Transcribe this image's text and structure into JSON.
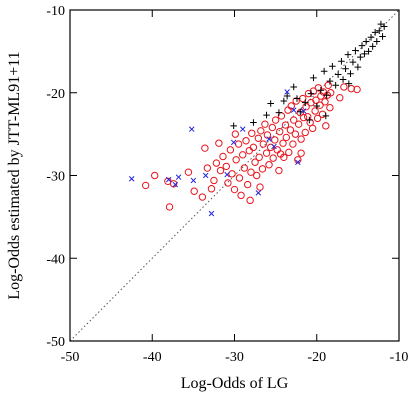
{
  "chart_data": {
    "type": "scatter",
    "xlabel": "Log-Odds of LG",
    "ylabel": "Log-Odds estimated by JTT-ML91+11",
    "xlim": [
      -50,
      -10
    ],
    "ylim": [
      -50,
      -10
    ],
    "xticks": [
      -50,
      -40,
      -30,
      -20,
      -10
    ],
    "yticks": [
      -50,
      -40,
      -30,
      -20,
      -10
    ],
    "xtick_labels": [
      "-50",
      "-40",
      "-30",
      "-20",
      "-10"
    ],
    "ytick_labels": [
      "-50",
      "-40",
      "-30",
      "-20",
      "-10"
    ],
    "grid": false,
    "reference_line": {
      "style": "dotted",
      "from": [
        -50,
        -50
      ],
      "to": [
        -10,
        -10
      ]
    },
    "series": [
      {
        "marker": "circle",
        "color": "#e8141b",
        "points": [
          [
            -40.8,
            -31.2
          ],
          [
            -39.7,
            -30.0
          ],
          [
            -38.1,
            -30.7
          ],
          [
            -37.9,
            -33.8
          ],
          [
            -37.4,
            -31.0
          ],
          [
            -35.6,
            -29.6
          ],
          [
            -34.9,
            -31.9
          ],
          [
            -33.9,
            -32.6
          ],
          [
            -33.3,
            -29.1
          ],
          [
            -32.8,
            -31.6
          ],
          [
            -32.5,
            -30.6
          ],
          [
            -32.2,
            -28.5
          ],
          [
            -31.7,
            -29.4
          ],
          [
            -31.4,
            -27.7
          ],
          [
            -31.0,
            -28.9
          ],
          [
            -30.8,
            -30.9
          ],
          [
            -30.5,
            -26.9
          ],
          [
            -30.3,
            -29.8
          ],
          [
            -30.0,
            -31.7
          ],
          [
            -29.8,
            -28.1
          ],
          [
            -29.5,
            -26.2
          ],
          [
            -29.4,
            -30.3
          ],
          [
            -29.2,
            -32.4
          ],
          [
            -29.0,
            -27.5
          ],
          [
            -28.8,
            -29.1
          ],
          [
            -28.6,
            -25.8
          ],
          [
            -28.4,
            -31.1
          ],
          [
            -28.2,
            -27.0
          ],
          [
            -28.0,
            -29.6
          ],
          [
            -27.9,
            -24.9
          ],
          [
            -27.7,
            -26.6
          ],
          [
            -27.5,
            -28.4
          ],
          [
            -27.3,
            -30.0
          ],
          [
            -27.1,
            -25.5
          ],
          [
            -27.0,
            -27.8
          ],
          [
            -26.8,
            -24.6
          ],
          [
            -26.6,
            -29.2
          ],
          [
            -26.5,
            -26.2
          ],
          [
            -26.3,
            -23.8
          ],
          [
            -26.1,
            -27.3
          ],
          [
            -26.0,
            -25.1
          ],
          [
            -25.8,
            -28.7
          ],
          [
            -25.6,
            -26.6
          ],
          [
            -25.4,
            -24.2
          ],
          [
            -25.3,
            -27.9
          ],
          [
            -25.1,
            -25.7
          ],
          [
            -25.0,
            -23.3
          ],
          [
            -24.8,
            -26.9
          ],
          [
            -24.6,
            -29.4
          ],
          [
            -24.5,
            -24.7
          ],
          [
            -24.3,
            -22.8
          ],
          [
            -24.1,
            -26.1
          ],
          [
            -24.0,
            -27.8
          ],
          [
            -23.8,
            -23.9
          ],
          [
            -23.7,
            -25.4
          ],
          [
            -23.5,
            -22.1
          ],
          [
            -23.4,
            -27.2
          ],
          [
            -23.2,
            -24.5
          ],
          [
            -23.1,
            -21.6
          ],
          [
            -22.9,
            -26.2
          ],
          [
            -22.8,
            -23.3
          ],
          [
            -22.6,
            -25.0
          ],
          [
            -22.5,
            -21.0
          ],
          [
            -22.3,
            -28.1
          ],
          [
            -22.2,
            -23.8
          ],
          [
            -22.0,
            -22.4
          ],
          [
            -21.9,
            -25.6
          ],
          [
            -21.7,
            -20.7
          ],
          [
            -21.6,
            -23.0
          ],
          [
            -21.4,
            -24.8
          ],
          [
            -21.3,
            -21.7
          ],
          [
            -21.1,
            -22.9
          ],
          [
            -21.0,
            -20.1
          ],
          [
            -20.8,
            -23.6
          ],
          [
            -20.7,
            -21.2
          ],
          [
            -20.5,
            -24.3
          ],
          [
            -20.4,
            -19.8
          ],
          [
            -20.2,
            -22.2
          ],
          [
            -20.1,
            -20.9
          ],
          [
            -19.9,
            -23.1
          ],
          [
            -19.8,
            -19.4
          ],
          [
            -19.6,
            -21.5
          ],
          [
            -19.5,
            -20.4
          ],
          [
            -19.3,
            -22.6
          ],
          [
            -19.2,
            -19.9
          ],
          [
            -19.0,
            -21.1
          ],
          [
            -18.9,
            -24.0
          ],
          [
            -18.7,
            -20.3
          ],
          [
            -18.6,
            -19.1
          ],
          [
            -18.4,
            -21.8
          ],
          [
            -18.3,
            -20.0
          ],
          [
            -16.7,
            -19.3
          ],
          [
            -15.8,
            -19.5
          ],
          [
            -15.1,
            -19.6
          ],
          [
            -17.2,
            -20.6
          ],
          [
            -26.9,
            -31.4
          ],
          [
            -24.4,
            -27.4
          ],
          [
            -31.9,
            -26.1
          ],
          [
            -29.9,
            -25.0
          ],
          [
            -33.6,
            -26.7
          ],
          [
            -28.1,
            -33.0
          ],
          [
            -21.9,
            -27.3
          ]
        ]
      },
      {
        "marker": "plus",
        "color": "#000000",
        "points": [
          [
            -30.1,
            -24.0
          ],
          [
            -27.7,
            -23.6
          ],
          [
            -26.1,
            -22.7
          ],
          [
            -25.6,
            -21.3
          ],
          [
            -24.0,
            -21.0
          ],
          [
            -23.6,
            -20.4
          ],
          [
            -22.8,
            -19.3
          ],
          [
            -22.0,
            -22.3
          ],
          [
            -21.4,
            -21.2
          ],
          [
            -20.7,
            -20.1
          ],
          [
            -20.4,
            -18.2
          ],
          [
            -20.0,
            -21.6
          ],
          [
            -19.5,
            -19.7
          ],
          [
            -19.1,
            -17.4
          ],
          [
            -18.8,
            -20.3
          ],
          [
            -18.4,
            -18.6
          ],
          [
            -18.1,
            -16.8
          ],
          [
            -17.7,
            -19.1
          ],
          [
            -17.4,
            -17.8
          ],
          [
            -17.0,
            -16.2
          ],
          [
            -16.8,
            -18.4
          ],
          [
            -16.5,
            -17.1
          ],
          [
            -16.2,
            -15.4
          ],
          [
            -15.9,
            -17.7
          ],
          [
            -15.6,
            -16.3
          ],
          [
            -15.3,
            -14.9
          ],
          [
            -15.0,
            -16.9
          ],
          [
            -14.7,
            -15.7
          ],
          [
            -14.5,
            -14.3
          ],
          [
            -14.2,
            -15.3
          ],
          [
            -14.0,
            -13.8
          ],
          [
            -13.7,
            -15.0
          ],
          [
            -13.4,
            -13.3
          ],
          [
            -13.2,
            -14.4
          ],
          [
            -12.9,
            -12.7
          ],
          [
            -12.7,
            -13.8
          ],
          [
            -12.4,
            -12.5
          ],
          [
            -12.2,
            -11.7
          ],
          [
            -12.0,
            -13.2
          ],
          [
            -11.8,
            -12.0
          ],
          [
            -18.9,
            -22.8
          ],
          [
            -20.9,
            -23.3
          ],
          [
            -22.4,
            -20.7
          ],
          [
            -24.6,
            -22.4
          ],
          [
            -16.1,
            -18.9
          ]
        ]
      },
      {
        "marker": "x",
        "color": "#2323e0",
        "points": [
          [
            -42.5,
            -30.4
          ],
          [
            -38.0,
            -30.5
          ],
          [
            -37.2,
            -31.1
          ],
          [
            -36.8,
            -30.2
          ],
          [
            -35.2,
            -24.4
          ],
          [
            -35.0,
            -30.6
          ],
          [
            -33.5,
            -30.0
          ],
          [
            -32.8,
            -34.6
          ],
          [
            -30.1,
            -26.0
          ],
          [
            -29.0,
            -24.4
          ],
          [
            -27.1,
            -32.1
          ],
          [
            -25.8,
            -25.6
          ],
          [
            -25.2,
            -26.5
          ],
          [
            -23.6,
            -19.9
          ],
          [
            -22.3,
            -28.4
          ],
          [
            -21.6,
            -22.2
          ],
          [
            -30.9,
            -29.9
          ],
          [
            -22.8,
            -22.1
          ]
        ]
      }
    ]
  }
}
